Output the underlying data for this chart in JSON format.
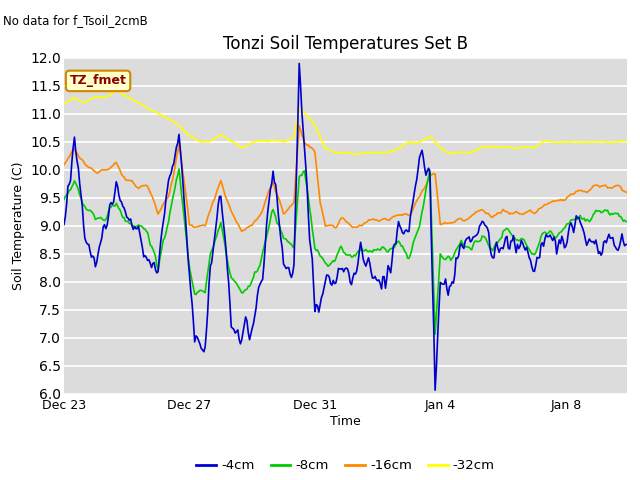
{
  "title": "Tonzi Soil Temperatures Set B",
  "no_data_label": "No data for f_Tsoil_2cmB",
  "tz_fmet_label": "TZ_fmet",
  "xlabel": "Time",
  "ylabel": "Soil Temperature (C)",
  "ylim": [
    6.0,
    12.0
  ],
  "yticks": [
    6.0,
    6.5,
    7.0,
    7.5,
    8.0,
    8.5,
    9.0,
    9.5,
    10.0,
    10.5,
    11.0,
    11.5,
    12.0
  ],
  "bg_color": "#dcdcdc",
  "fig_color": "#ffffff",
  "line_colors": {
    "4cm": "#0000cc",
    "8cm": "#00cc00",
    "16cm": "#ff8800",
    "32cm": "#ffff00"
  },
  "legend_labels": [
    "-4cm",
    "-8cm",
    "-16cm",
    "-32cm"
  ],
  "x_tick_labels": [
    "Dec 23",
    "Dec 27",
    "Dec 31",
    "Jan 4",
    "Jan 8"
  ],
  "x_tick_positions": [
    0,
    96,
    192,
    288,
    384
  ]
}
